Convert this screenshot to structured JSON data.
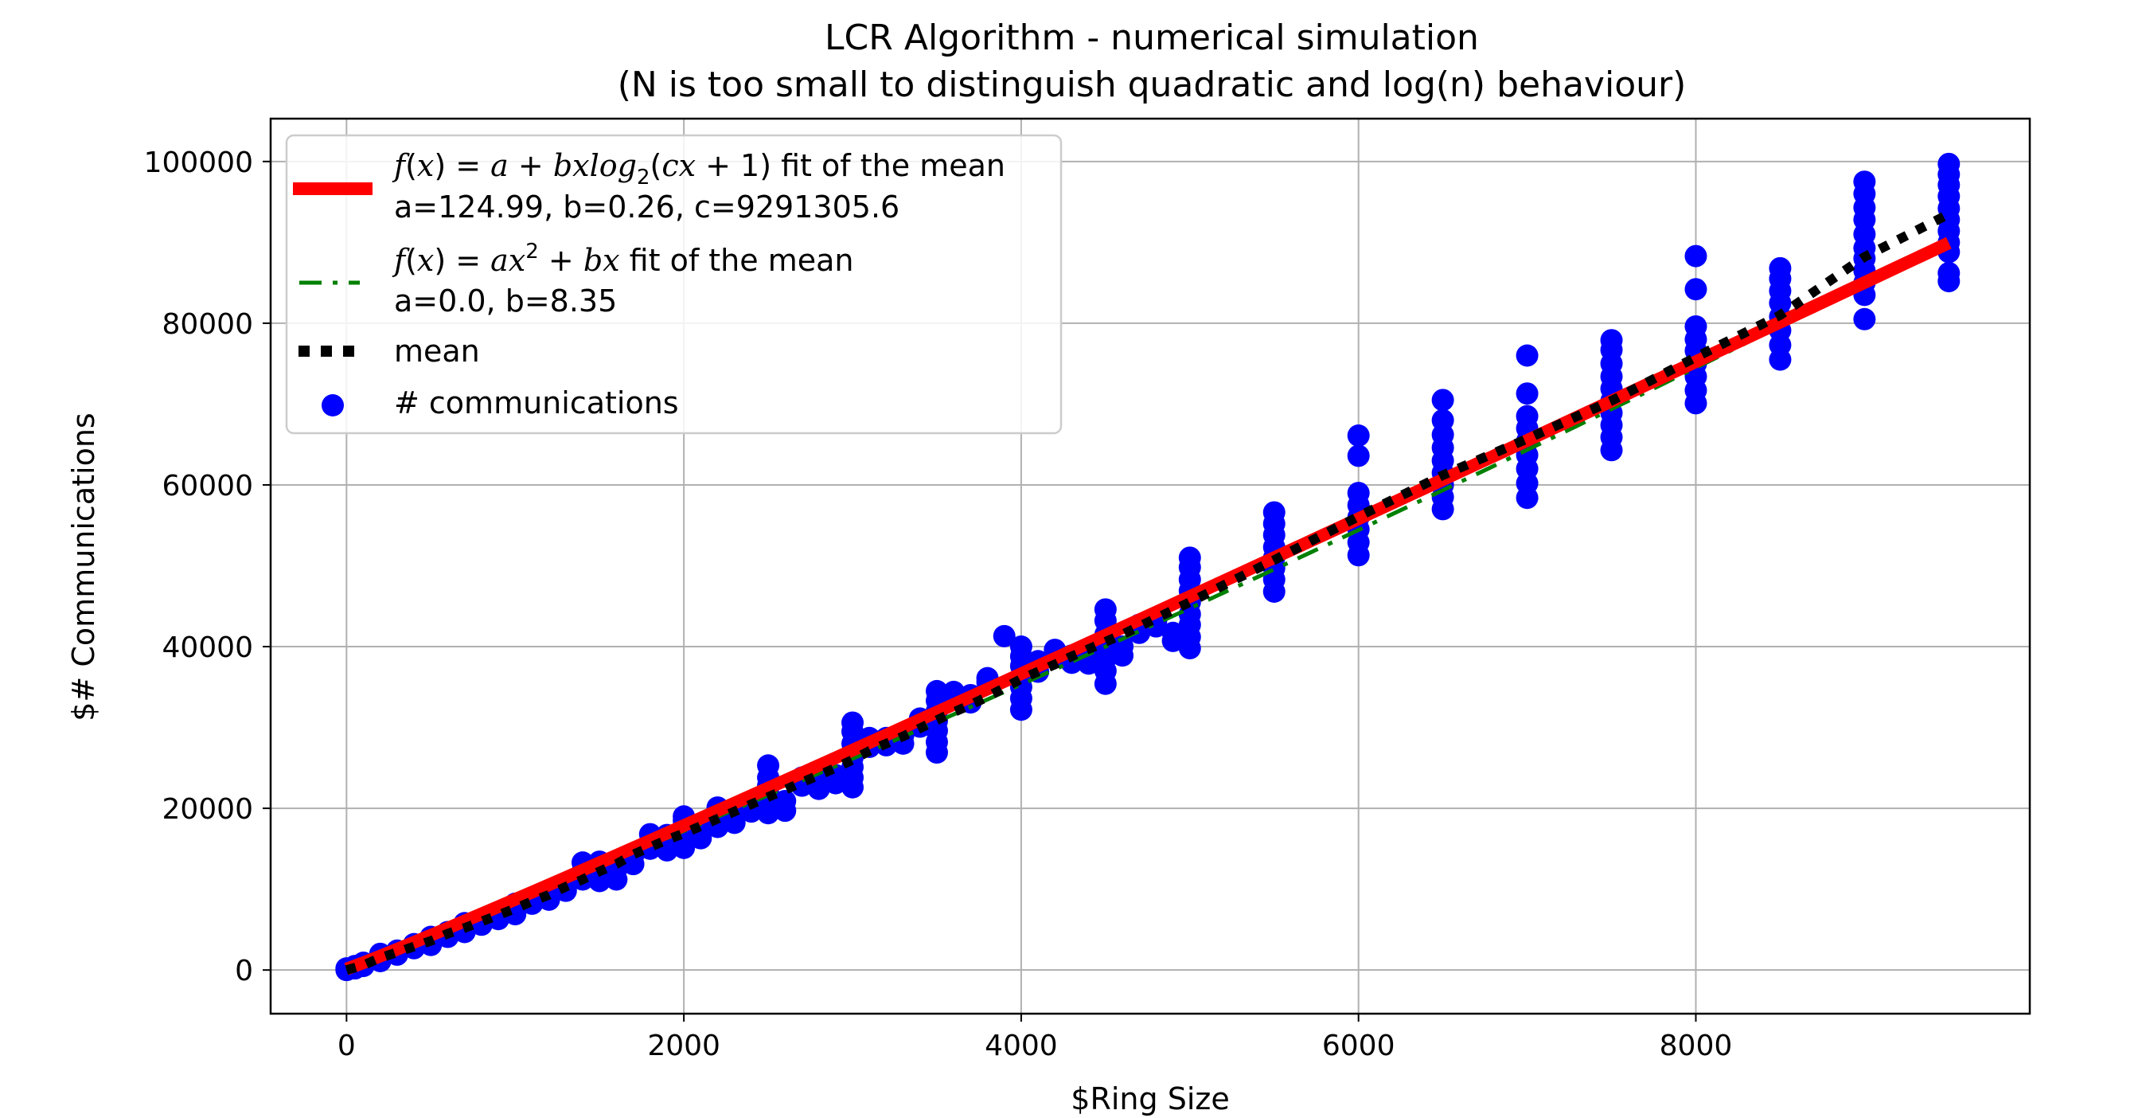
{
  "chart_data": {
    "type": "scatter",
    "title": "LCR Algorithm - numerical simulation",
    "subtitle": "(N is too small to distinguish quadratic and log(n) behaviour)",
    "xlabel": "$Ring Size",
    "ylabel": "$# Communications",
    "xlim": [
      -450,
      9980
    ],
    "ylim": [
      -5400,
      105300
    ],
    "xticks": [
      0,
      2000,
      4000,
      6000,
      8000
    ],
    "yticks": [
      0,
      20000,
      40000,
      60000,
      80000,
      100000
    ],
    "xtick_labels": [
      "0",
      "2000",
      "4000",
      "6000",
      "8000"
    ],
    "ytick_labels": [
      "0",
      "20000",
      "40000",
      "60000",
      "80000",
      "100000"
    ],
    "grid": true,
    "legend_position": "upper-left",
    "colors": {
      "scatter": "#0000ff",
      "log_fit": "#ff0000",
      "quad_fit": "#008000",
      "mean": "#000000",
      "grid": "#b0b0b0"
    },
    "fits": {
      "log_fit": {
        "a": 124.99,
        "b": 0.26,
        "c": 9291305.6
      },
      "quad_fit": {
        "a": 0.0,
        "b": 8.35
      }
    },
    "legend": [
      {
        "key": "log_fit",
        "formula_parts": [
          "f",
          "(",
          "x",
          ") = ",
          "a",
          " + ",
          "bxlog",
          "2",
          "(",
          "cx",
          " + 1) fit of the mean"
        ],
        "params": "a=124.99, b=0.26, c=9291305.6",
        "style": "thick-line"
      },
      {
        "key": "quad_fit",
        "formula_parts": [
          "f",
          "(",
          "x",
          ") = ",
          "ax",
          "2",
          " + ",
          "bx",
          " fit  of the  mean"
        ],
        "params": "a=0.0, b=8.35",
        "style": "dash-dot"
      },
      {
        "key": "mean",
        "label": "mean",
        "style": "dotted"
      },
      {
        "key": "scatter",
        "label": "# communications",
        "style": "marker"
      }
    ],
    "mean": {
      "x": [
        0,
        100,
        200,
        300,
        400,
        500,
        600,
        700,
        800,
        900,
        1000,
        1100,
        1200,
        1300,
        1400,
        1500,
        1600,
        1700,
        1800,
        1900,
        2000,
        2100,
        2200,
        2300,
        2400,
        2500,
        2600,
        2700,
        2800,
        2900,
        3000,
        3100,
        3200,
        3300,
        3400,
        3500,
        3600,
        3700,
        3800,
        3900,
        4000,
        4100,
        4200,
        4300,
        4400,
        4500,
        4600,
        4700,
        4800,
        4900,
        5000,
        5500,
        6000,
        6500,
        7000,
        7500,
        8000,
        8500,
        9000,
        9500
      ],
      "y": [
        0,
        600,
        1500,
        2200,
        2900,
        3600,
        4500,
        5200,
        6000,
        6800,
        7600,
        8500,
        9300,
        10300,
        11200,
        12200,
        13100,
        14300,
        15200,
        16100,
        16900,
        17800,
        18700,
        19600,
        20500,
        21400,
        22300,
        23200,
        24100,
        25000,
        26000,
        27100,
        28000,
        28900,
        29900,
        30900,
        31900,
        32800,
        33800,
        34900,
        36000,
        36900,
        37800,
        38800,
        39700,
        40600,
        41500,
        42500,
        43500,
        44500,
        45500,
        50700,
        56100,
        61200,
        65700,
        70400,
        75800,
        81000,
        88200,
        93500
      ]
    },
    "points": [
      {
        "x": 0,
        "y": [
          0,
          200
        ]
      },
      {
        "x": 50,
        "y": [
          200,
          500
        ]
      },
      {
        "x": 100,
        "y": [
          500,
          900
        ]
      },
      {
        "x": 200,
        "y": [
          1100,
          1500,
          2000
        ]
      },
      {
        "x": 300,
        "y": [
          1900,
          2400
        ]
      },
      {
        "x": 400,
        "y": [
          2700,
          3200
        ]
      },
      {
        "x": 500,
        "y": [
          3100,
          3600,
          4100
        ]
      },
      {
        "x": 600,
        "y": [
          4100,
          4700
        ]
      },
      {
        "x": 700,
        "y": [
          4700,
          5300,
          5800
        ]
      },
      {
        "x": 800,
        "y": [
          5600,
          6200
        ]
      },
      {
        "x": 900,
        "y": [
          6300,
          7000
        ]
      },
      {
        "x": 1000,
        "y": [
          6900,
          7600,
          8200
        ]
      },
      {
        "x": 1100,
        "y": [
          8200,
          8900
        ]
      },
      {
        "x": 1200,
        "y": [
          8700,
          9400
        ]
      },
      {
        "x": 1300,
        "y": [
          9800,
          10500
        ]
      },
      {
        "x": 1400,
        "y": [
          11200,
          12200,
          13300
        ]
      },
      {
        "x": 1500,
        "y": [
          11000,
          12300,
          13400
        ]
      },
      {
        "x": 1600,
        "y": [
          11200,
          12500
        ]
      },
      {
        "x": 1700,
        "y": [
          13100,
          14200
        ]
      },
      {
        "x": 1800,
        "y": [
          15000,
          15800,
          16800
        ]
      },
      {
        "x": 1900,
        "y": [
          14800,
          15900,
          16700
        ]
      },
      {
        "x": 2000,
        "y": [
          15100,
          16300,
          17500,
          18500,
          19000
        ]
      },
      {
        "x": 2100,
        "y": [
          16300,
          17400
        ]
      },
      {
        "x": 2200,
        "y": [
          17700,
          19000,
          20100
        ]
      },
      {
        "x": 2300,
        "y": [
          18200,
          19200
        ]
      },
      {
        "x": 2400,
        "y": [
          19600,
          20800
        ]
      },
      {
        "x": 2500,
        "y": [
          19400,
          20600,
          21800,
          22800,
          23800,
          25300
        ]
      },
      {
        "x": 2600,
        "y": [
          19700,
          20900
        ]
      },
      {
        "x": 2700,
        "y": [
          22800,
          23800
        ]
      },
      {
        "x": 2800,
        "y": [
          22400,
          23500
        ]
      },
      {
        "x": 2900,
        "y": [
          23100,
          24100
        ]
      },
      {
        "x": 3000,
        "y": [
          22600,
          23800,
          25100,
          26300,
          28000,
          29500,
          30600
        ]
      },
      {
        "x": 3100,
        "y": [
          27600,
          28700
        ]
      },
      {
        "x": 3200,
        "y": [
          27800,
          28700
        ]
      },
      {
        "x": 3300,
        "y": [
          28000,
          29000
        ]
      },
      {
        "x": 3400,
        "y": [
          30100,
          31100
        ]
      },
      {
        "x": 3500,
        "y": [
          26900,
          28200,
          29600,
          30800,
          32000,
          33300,
          34500
        ]
      },
      {
        "x": 3600,
        "y": [
          33600,
          34400
        ]
      },
      {
        "x": 3700,
        "y": [
          33100,
          34000
        ]
      },
      {
        "x": 3800,
        "y": [
          35600,
          36100
        ]
      },
      {
        "x": 3900,
        "y": [
          41300
        ]
      },
      {
        "x": 4000,
        "y": [
          32200,
          33600,
          35000,
          36200,
          37600,
          38800,
          40000
        ]
      },
      {
        "x": 4100,
        "y": [
          36900,
          38200
        ]
      },
      {
        "x": 4200,
        "y": [
          38700,
          39600
        ]
      },
      {
        "x": 4300,
        "y": [
          38000,
          38900
        ]
      },
      {
        "x": 4400,
        "y": [
          37900,
          38700
        ]
      },
      {
        "x": 4500,
        "y": [
          35400,
          37000,
          38500,
          40000,
          41500,
          43200,
          44600
        ]
      },
      {
        "x": 4600,
        "y": [
          38900,
          40000
        ]
      },
      {
        "x": 4700,
        "y": [
          41700,
          42700
        ]
      },
      {
        "x": 4800,
        "y": [
          42500,
          43200
        ]
      },
      {
        "x": 4900,
        "y": [
          40700,
          41700
        ]
      },
      {
        "x": 5000,
        "y": [
          39800,
          41200,
          42700,
          44000,
          45500,
          46900,
          48300,
          49800,
          51000
        ]
      },
      {
        "x": 5500,
        "y": [
          46800,
          48300,
          49700,
          51000,
          52300,
          53800,
          55200,
          56600
        ]
      },
      {
        "x": 6000,
        "y": [
          51300,
          52900,
          54500,
          56000,
          57500,
          59000,
          63600,
          66100
        ]
      },
      {
        "x": 6500,
        "y": [
          57000,
          58500,
          60000,
          61500,
          63000,
          64600,
          66200,
          68000,
          70500
        ]
      },
      {
        "x": 7000,
        "y": [
          58400,
          60200,
          62000,
          63700,
          65400,
          67000,
          68500,
          71300,
          76000
        ]
      },
      {
        "x": 7500,
        "y": [
          64300,
          65900,
          67400,
          68900,
          70400,
          71900,
          73400,
          75000,
          76700,
          77900
        ]
      },
      {
        "x": 8000,
        "y": [
          70100,
          71700,
          73400,
          75000,
          76600,
          78000,
          79600,
          84200,
          88300
        ]
      },
      {
        "x": 8500,
        "y": [
          75500,
          77300,
          79100,
          80800,
          82500,
          84000,
          85500,
          86800
        ]
      },
      {
        "x": 9000,
        "y": [
          80500,
          83500,
          85000,
          86500,
          88000,
          89300,
          91000,
          92800,
          94300,
          96000,
          97500
        ]
      },
      {
        "x": 9500,
        "y": [
          85200,
          86200,
          88800,
          90000,
          91400,
          92800,
          94200,
          95700,
          97100,
          98400,
          99700
        ]
      }
    ]
  }
}
